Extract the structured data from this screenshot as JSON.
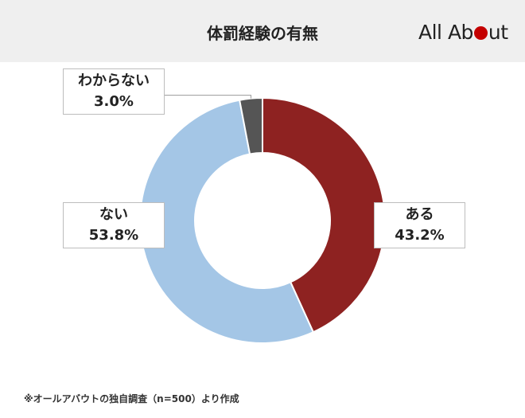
{
  "chart_data": {
    "type": "pie",
    "title": "体罰経験の有無",
    "categories": [
      "ある",
      "ない",
      "わからない"
    ],
    "values": [
      43.2,
      53.8,
      3.0
    ],
    "value_labels": [
      "43.2%",
      "53.8%",
      "3.0%"
    ],
    "donut": true,
    "colors": [
      "#8e2221",
      "#a4c6e6",
      "#555555"
    ]
  },
  "brand": {
    "logo_part1": "All Ab",
    "logo_part2": "ut"
  },
  "footnote": "※オールアバウトの独自調査（n=500）より作成"
}
